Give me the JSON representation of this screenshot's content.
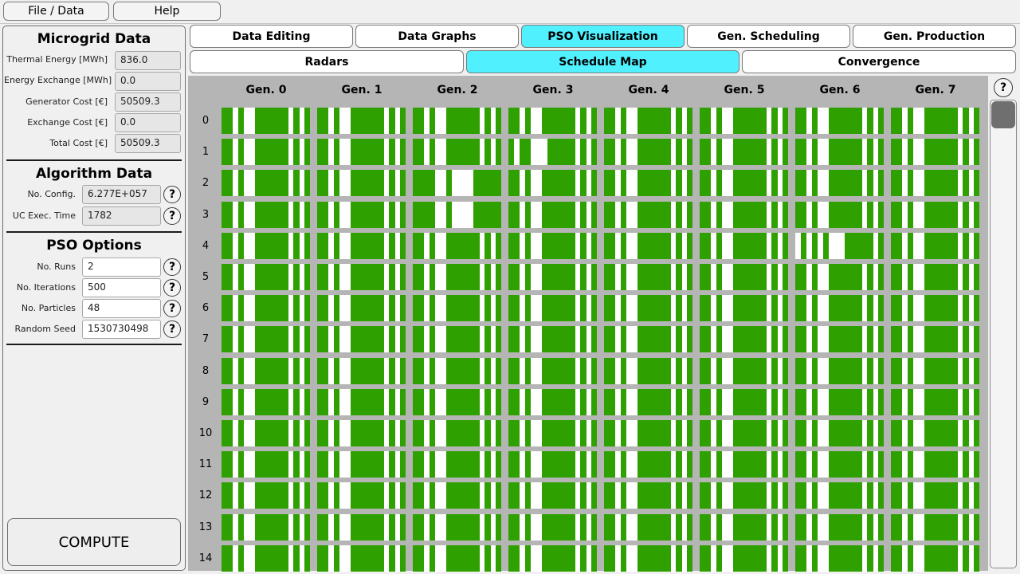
{
  "menu": {
    "file": "File / Data",
    "help": "Help"
  },
  "microgrid": {
    "title": "Microgrid Data",
    "fields": [
      {
        "label": "Thermal Energy [MWh]",
        "value": "836.0"
      },
      {
        "label": "Energy Exchange [MWh]",
        "value": "0.0"
      },
      {
        "label": "Generator Cost [€]",
        "value": "50509.3"
      },
      {
        "label": "Exchange Cost [€]",
        "value": "0.0"
      },
      {
        "label": "Total Cost [€]",
        "value": "50509.3"
      }
    ]
  },
  "algorithm": {
    "title": "Algorithm Data",
    "fields": [
      {
        "label": "No. Config.",
        "value": "6.277E+057"
      },
      {
        "label": "UC Exec. Time",
        "value": "1782"
      }
    ]
  },
  "pso": {
    "title": "PSO Options",
    "fields": [
      {
        "label": "No. Runs",
        "value": "2"
      },
      {
        "label": "No. Iterations",
        "value": "500"
      },
      {
        "label": "No. Particles",
        "value": "48"
      },
      {
        "label": "Random Seed",
        "value": "1530730498"
      }
    ]
  },
  "compute_label": "COMPUTE",
  "help_glyph": "?",
  "tabs": [
    {
      "label": "Data Editing",
      "active": false
    },
    {
      "label": "Data Graphs",
      "active": false
    },
    {
      "label": "PSO Visualization",
      "active": true
    },
    {
      "label": "Gen. Scheduling",
      "active": false
    },
    {
      "label": "Gen. Production",
      "active": false
    }
  ],
  "subtabs": [
    {
      "label": "Radars",
      "active": false
    },
    {
      "label": "Schedule Map",
      "active": true
    },
    {
      "label": "Convergence",
      "active": false
    }
  ],
  "colors": {
    "accent_tab": "#50f0ff",
    "on_bar": "#2ea000"
  },
  "schedule": {
    "generators": [
      "Gen. 0",
      "Gen. 1",
      "Gen. 2",
      "Gen. 3",
      "Gen. 4",
      "Gen. 5",
      "Gen. 6",
      "Gen. 7"
    ],
    "rows": [
      "0",
      "1",
      "2",
      "3",
      "4",
      "5",
      "6",
      "7",
      "8",
      "9",
      "10",
      "11",
      "12",
      "13",
      "14"
    ],
    "pattern_on": "1101001111110101",
    "pattern_row2_gen2": "1111001000011111",
    "pattern_row1_gen3": "1011000111110101",
    "pattern_row4_gen6": "0101010001111101"
  }
}
